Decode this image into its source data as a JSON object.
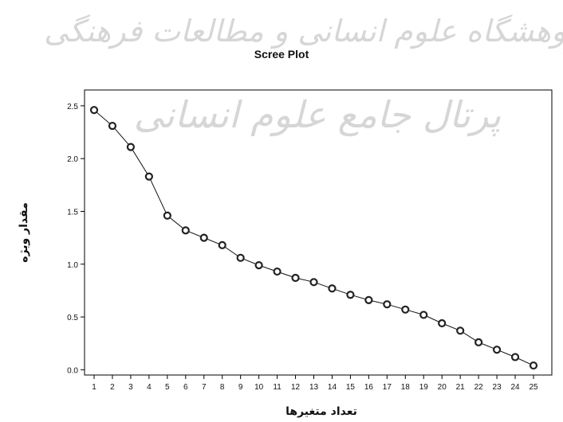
{
  "watermark": {
    "line1": "پژوهشگاه علوم انسانی و مطالعات فرهنگی",
    "line2": "پرتال جامع علوم انسانی"
  },
  "chart_data": {
    "type": "line",
    "title": "Scree Plot",
    "xlabel": "تعداد متغیرها",
    "ylabel": "مقدار ویژه",
    "x": [
      1,
      2,
      3,
      4,
      5,
      6,
      7,
      8,
      9,
      10,
      11,
      12,
      13,
      14,
      15,
      16,
      17,
      18,
      19,
      20,
      21,
      22,
      23,
      24,
      25
    ],
    "series": [
      {
        "values": [
          2.46,
          2.31,
          2.11,
          1.83,
          1.46,
          1.32,
          1.25,
          1.18,
          1.06,
          0.99,
          0.93,
          0.87,
          0.83,
          0.77,
          0.71,
          0.66,
          0.62,
          0.57,
          0.52,
          0.44,
          0.37,
          0.26,
          0.19,
          0.12,
          0.04
        ]
      }
    ],
    "ylim": [
      -0.05,
      2.65
    ],
    "yticks": [
      "0.0",
      "0.5",
      "1.0",
      "1.5",
      "2.0",
      "2.5"
    ],
    "xticks": [
      "1",
      "2",
      "3",
      "4",
      "5",
      "6",
      "7",
      "8",
      "9",
      "10",
      "11",
      "12",
      "13",
      "14",
      "15",
      "16",
      "17",
      "18",
      "19",
      "20",
      "21",
      "22",
      "23",
      "24",
      "25"
    ],
    "grid": false
  }
}
